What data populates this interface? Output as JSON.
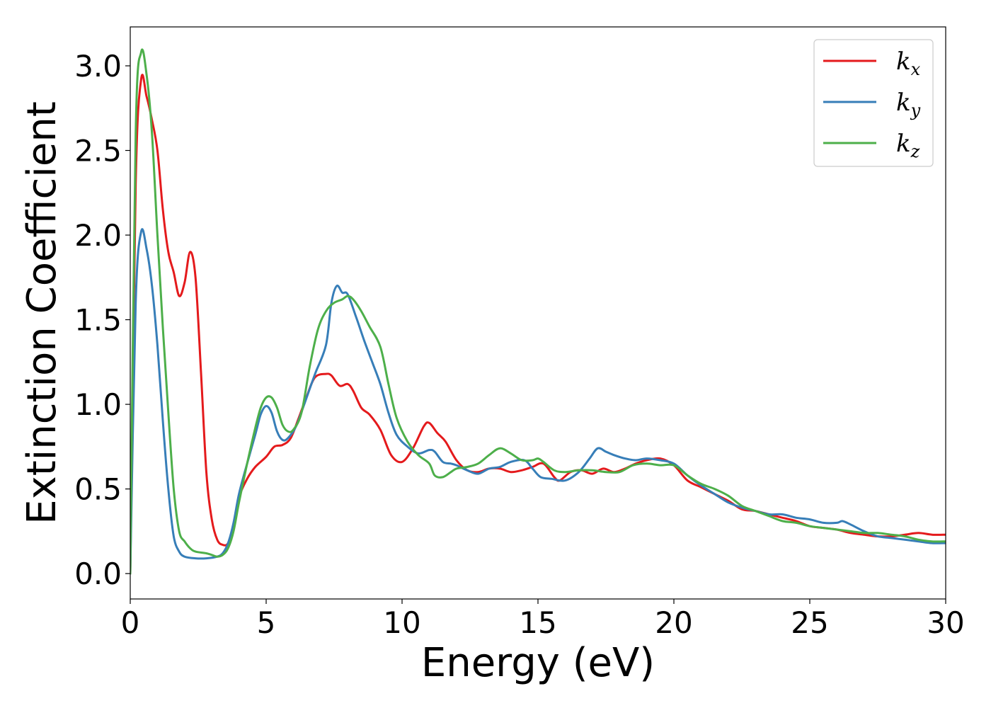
{
  "chart_data": {
    "type": "line",
    "title": "",
    "xlabel": "Energy (eV)",
    "ylabel": "Extinction Coefficient",
    "xlim": [
      0,
      30
    ],
    "ylim": [
      -0.15,
      3.23
    ],
    "xticks": [
      0,
      5,
      10,
      15,
      20,
      25,
      30
    ],
    "xtick_labels": [
      "0",
      "5",
      "10",
      "15",
      "20",
      "25",
      "30"
    ],
    "yticks": [
      0.0,
      0.5,
      1.0,
      1.5,
      2.0,
      2.5,
      3.0
    ],
    "ytick_labels": [
      "0.0",
      "0.5",
      "1.0",
      "1.5",
      "2.0",
      "2.5",
      "3.0"
    ],
    "grid": false,
    "legend_position": "top-right",
    "series": [
      {
        "name": "k_x",
        "label_base": "k",
        "label_sub": "x",
        "color": "#e41a1c",
        "points": [
          [
            0,
            0.0
          ],
          [
            0.2,
            2.3
          ],
          [
            0.4,
            2.92
          ],
          [
            0.6,
            2.82
          ],
          [
            0.8,
            2.68
          ],
          [
            1.0,
            2.5
          ],
          [
            1.2,
            2.15
          ],
          [
            1.4,
            1.9
          ],
          [
            1.6,
            1.78
          ],
          [
            1.8,
            1.64
          ],
          [
            2.0,
            1.72
          ],
          [
            2.2,
            1.9
          ],
          [
            2.4,
            1.75
          ],
          [
            2.6,
            1.2
          ],
          [
            2.8,
            0.6
          ],
          [
            3.0,
            0.32
          ],
          [
            3.2,
            0.2
          ],
          [
            3.4,
            0.17
          ],
          [
            3.6,
            0.18
          ],
          [
            3.8,
            0.28
          ],
          [
            4.0,
            0.45
          ],
          [
            4.3,
            0.56
          ],
          [
            4.6,
            0.63
          ],
          [
            5.0,
            0.69
          ],
          [
            5.3,
            0.75
          ],
          [
            5.6,
            0.76
          ],
          [
            5.9,
            0.8
          ],
          [
            6.2,
            0.92
          ],
          [
            6.5,
            1.05
          ],
          [
            6.8,
            1.16
          ],
          [
            7.2,
            1.18
          ],
          [
            7.4,
            1.17
          ],
          [
            7.7,
            1.11
          ],
          [
            8.0,
            1.12
          ],
          [
            8.2,
            1.08
          ],
          [
            8.5,
            0.98
          ],
          [
            8.8,
            0.94
          ],
          [
            9.2,
            0.85
          ],
          [
            9.6,
            0.7
          ],
          [
            10.0,
            0.66
          ],
          [
            10.4,
            0.74
          ],
          [
            10.8,
            0.87
          ],
          [
            11.0,
            0.89
          ],
          [
            11.3,
            0.83
          ],
          [
            11.6,
            0.78
          ],
          [
            12.0,
            0.67
          ],
          [
            12.4,
            0.61
          ],
          [
            12.8,
            0.6
          ],
          [
            13.2,
            0.62
          ],
          [
            13.6,
            0.62
          ],
          [
            14.0,
            0.6
          ],
          [
            14.4,
            0.61
          ],
          [
            14.8,
            0.63
          ],
          [
            15.2,
            0.65
          ],
          [
            15.6,
            0.57
          ],
          [
            15.8,
            0.55
          ],
          [
            16.2,
            0.6
          ],
          [
            16.6,
            0.61
          ],
          [
            17.0,
            0.59
          ],
          [
            17.4,
            0.62
          ],
          [
            17.8,
            0.6
          ],
          [
            18.2,
            0.62
          ],
          [
            18.6,
            0.65
          ],
          [
            19.0,
            0.67
          ],
          [
            19.5,
            0.68
          ],
          [
            20.0,
            0.64
          ],
          [
            20.5,
            0.55
          ],
          [
            21.0,
            0.51
          ],
          [
            21.5,
            0.47
          ],
          [
            22.0,
            0.43
          ],
          [
            22.5,
            0.38
          ],
          [
            23.0,
            0.37
          ],
          [
            23.5,
            0.35
          ],
          [
            24.0,
            0.33
          ],
          [
            24.5,
            0.31
          ],
          [
            25.0,
            0.28
          ],
          [
            25.5,
            0.27
          ],
          [
            26.0,
            0.26
          ],
          [
            26.5,
            0.24
          ],
          [
            27.0,
            0.23
          ],
          [
            27.5,
            0.22
          ],
          [
            28.0,
            0.22
          ],
          [
            28.5,
            0.23
          ],
          [
            29.0,
            0.24
          ],
          [
            29.5,
            0.23
          ],
          [
            30.0,
            0.23
          ]
        ]
      },
      {
        "name": "k_y",
        "label_base": "k",
        "label_sub": "y",
        "color": "#377eb8",
        "points": [
          [
            0,
            0.0
          ],
          [
            0.2,
            1.6
          ],
          [
            0.4,
            2.02
          ],
          [
            0.6,
            1.92
          ],
          [
            0.8,
            1.7
          ],
          [
            1.0,
            1.35
          ],
          [
            1.2,
            0.9
          ],
          [
            1.4,
            0.5
          ],
          [
            1.6,
            0.22
          ],
          [
            1.8,
            0.13
          ],
          [
            2.0,
            0.1
          ],
          [
            2.4,
            0.09
          ],
          [
            2.8,
            0.09
          ],
          [
            3.2,
            0.1
          ],
          [
            3.4,
            0.12
          ],
          [
            3.6,
            0.18
          ],
          [
            3.8,
            0.3
          ],
          [
            4.0,
            0.47
          ],
          [
            4.3,
            0.65
          ],
          [
            4.6,
            0.82
          ],
          [
            4.8,
            0.94
          ],
          [
            5.0,
            0.99
          ],
          [
            5.2,
            0.95
          ],
          [
            5.4,
            0.84
          ],
          [
            5.6,
            0.79
          ],
          [
            5.8,
            0.8
          ],
          [
            6.1,
            0.87
          ],
          [
            6.4,
            1.0
          ],
          [
            6.8,
            1.18
          ],
          [
            7.2,
            1.35
          ],
          [
            7.4,
            1.6
          ],
          [
            7.6,
            1.7
          ],
          [
            7.8,
            1.66
          ],
          [
            8.0,
            1.65
          ],
          [
            8.3,
            1.52
          ],
          [
            8.6,
            1.38
          ],
          [
            8.9,
            1.25
          ],
          [
            9.2,
            1.12
          ],
          [
            9.5,
            0.95
          ],
          [
            9.8,
            0.82
          ],
          [
            10.2,
            0.75
          ],
          [
            10.6,
            0.71
          ],
          [
            11.0,
            0.73
          ],
          [
            11.2,
            0.72
          ],
          [
            11.5,
            0.66
          ],
          [
            11.8,
            0.65
          ],
          [
            12.0,
            0.64
          ],
          [
            12.4,
            0.61
          ],
          [
            12.8,
            0.59
          ],
          [
            13.2,
            0.62
          ],
          [
            13.6,
            0.63
          ],
          [
            14.0,
            0.66
          ],
          [
            14.5,
            0.67
          ],
          [
            14.8,
            0.62
          ],
          [
            15.1,
            0.57
          ],
          [
            15.5,
            0.56
          ],
          [
            16.0,
            0.55
          ],
          [
            16.5,
            0.6
          ],
          [
            16.9,
            0.68
          ],
          [
            17.2,
            0.74
          ],
          [
            17.5,
            0.72
          ],
          [
            17.8,
            0.7
          ],
          [
            18.2,
            0.68
          ],
          [
            18.6,
            0.67
          ],
          [
            19.0,
            0.68
          ],
          [
            19.5,
            0.67
          ],
          [
            20.0,
            0.65
          ],
          [
            20.5,
            0.58
          ],
          [
            21.0,
            0.52
          ],
          [
            21.5,
            0.47
          ],
          [
            22.0,
            0.42
          ],
          [
            22.5,
            0.39
          ],
          [
            23.0,
            0.37
          ],
          [
            23.5,
            0.35
          ],
          [
            24.0,
            0.35
          ],
          [
            24.5,
            0.33
          ],
          [
            25.0,
            0.32
          ],
          [
            25.5,
            0.3
          ],
          [
            26.0,
            0.3
          ],
          [
            26.2,
            0.31
          ],
          [
            26.5,
            0.29
          ],
          [
            27.0,
            0.25
          ],
          [
            27.5,
            0.22
          ],
          [
            28.0,
            0.21
          ],
          [
            28.5,
            0.2
          ],
          [
            29.0,
            0.19
          ],
          [
            29.5,
            0.18
          ],
          [
            30.0,
            0.18
          ]
        ]
      },
      {
        "name": "k_z",
        "label_base": "k",
        "label_sub": "z",
        "color": "#4daf4a",
        "points": [
          [
            0,
            0.0
          ],
          [
            0.2,
            2.6
          ],
          [
            0.4,
            3.08
          ],
          [
            0.6,
            2.95
          ],
          [
            0.8,
            2.6
          ],
          [
            1.0,
            2.0
          ],
          [
            1.2,
            1.45
          ],
          [
            1.4,
            0.95
          ],
          [
            1.6,
            0.5
          ],
          [
            1.8,
            0.25
          ],
          [
            2.0,
            0.19
          ],
          [
            2.2,
            0.15
          ],
          [
            2.4,
            0.13
          ],
          [
            2.8,
            0.12
          ],
          [
            3.0,
            0.11
          ],
          [
            3.2,
            0.1
          ],
          [
            3.4,
            0.11
          ],
          [
            3.6,
            0.15
          ],
          [
            3.8,
            0.25
          ],
          [
            4.0,
            0.42
          ],
          [
            4.3,
            0.65
          ],
          [
            4.6,
            0.86
          ],
          [
            4.8,
            0.98
          ],
          [
            5.0,
            1.04
          ],
          [
            5.2,
            1.04
          ],
          [
            5.4,
            0.98
          ],
          [
            5.6,
            0.88
          ],
          [
            5.8,
            0.84
          ],
          [
            6.0,
            0.85
          ],
          [
            6.3,
            0.95
          ],
          [
            6.6,
            1.22
          ],
          [
            6.9,
            1.44
          ],
          [
            7.2,
            1.55
          ],
          [
            7.5,
            1.6
          ],
          [
            7.8,
            1.62
          ],
          [
            8.0,
            1.64
          ],
          [
            8.2,
            1.62
          ],
          [
            8.5,
            1.55
          ],
          [
            8.8,
            1.46
          ],
          [
            9.2,
            1.34
          ],
          [
            9.5,
            1.12
          ],
          [
            9.8,
            0.92
          ],
          [
            10.2,
            0.78
          ],
          [
            10.6,
            0.7
          ],
          [
            11.0,
            0.65
          ],
          [
            11.2,
            0.58
          ],
          [
            11.5,
            0.57
          ],
          [
            11.8,
            0.6
          ],
          [
            12.0,
            0.62
          ],
          [
            12.4,
            0.63
          ],
          [
            12.8,
            0.65
          ],
          [
            13.2,
            0.7
          ],
          [
            13.6,
            0.74
          ],
          [
            14.0,
            0.71
          ],
          [
            14.4,
            0.67
          ],
          [
            14.8,
            0.67
          ],
          [
            15.0,
            0.68
          ],
          [
            15.2,
            0.66
          ],
          [
            15.6,
            0.61
          ],
          [
            16.0,
            0.6
          ],
          [
            16.5,
            0.61
          ],
          [
            17.0,
            0.61
          ],
          [
            17.5,
            0.6
          ],
          [
            18.0,
            0.6
          ],
          [
            18.5,
            0.64
          ],
          [
            19.0,
            0.65
          ],
          [
            19.5,
            0.64
          ],
          [
            20.0,
            0.64
          ],
          [
            20.5,
            0.58
          ],
          [
            21.0,
            0.53
          ],
          [
            21.5,
            0.5
          ],
          [
            22.0,
            0.46
          ],
          [
            22.5,
            0.4
          ],
          [
            23.0,
            0.37
          ],
          [
            23.5,
            0.34
          ],
          [
            24.0,
            0.31
          ],
          [
            24.5,
            0.3
          ],
          [
            25.0,
            0.28
          ],
          [
            25.5,
            0.27
          ],
          [
            26.0,
            0.26
          ],
          [
            26.5,
            0.25
          ],
          [
            27.0,
            0.24
          ],
          [
            27.5,
            0.24
          ],
          [
            28.0,
            0.23
          ],
          [
            28.5,
            0.22
          ],
          [
            29.0,
            0.2
          ],
          [
            29.5,
            0.19
          ],
          [
            30.0,
            0.19
          ]
        ]
      }
    ]
  }
}
